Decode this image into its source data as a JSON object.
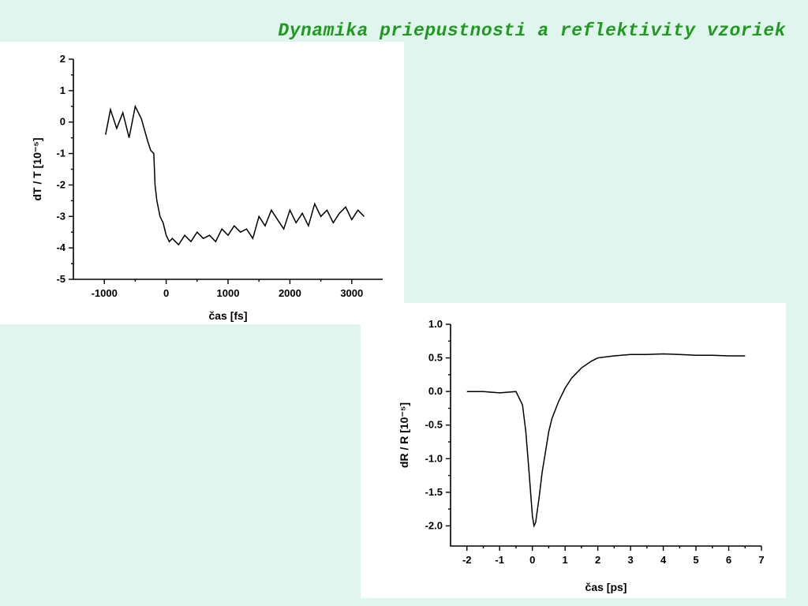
{
  "title": "Dynamika priepustnosti a reflektivity vzoriek",
  "chart_data": [
    {
      "type": "line",
      "xlabel": "čas [fs]",
      "ylabel": "dT / T [10⁻⁵]",
      "xlim": [
        -1500,
        3500
      ],
      "ylim": [
        -5,
        2
      ],
      "xticks": [
        -1000,
        0,
        1000,
        2000,
        3000
      ],
      "yticks": [
        -5,
        -4,
        -3,
        -2,
        -1,
        0,
        1,
        2
      ],
      "grid": false,
      "series": [
        {
          "x": [
            -980,
            -900,
            -800,
            -700,
            -600,
            -500,
            -400,
            -300,
            -250,
            -200,
            -180,
            -150,
            -100,
            -50,
            0,
            50,
            100,
            200,
            300,
            400,
            500,
            600,
            700,
            800,
            900,
            1000,
            1100,
            1200,
            1300,
            1400,
            1500,
            1600,
            1700,
            1800,
            1900,
            2000,
            2100,
            2200,
            2300,
            2400,
            2500,
            2600,
            2700,
            2800,
            2900,
            3000,
            3100,
            3200
          ],
          "y": [
            -0.4,
            0.4,
            -0.2,
            0.3,
            -0.5,
            0.5,
            0.1,
            -0.6,
            -0.9,
            -1.0,
            -2.0,
            -2.5,
            -3.0,
            -3.2,
            -3.6,
            -3.8,
            -3.7,
            -3.9,
            -3.6,
            -3.8,
            -3.5,
            -3.7,
            -3.6,
            -3.8,
            -3.4,
            -3.6,
            -3.3,
            -3.5,
            -3.4,
            -3.7,
            -3.0,
            -3.3,
            -2.8,
            -3.1,
            -3.4,
            -2.8,
            -3.2,
            -2.9,
            -3.3,
            -2.6,
            -3.0,
            -2.8,
            -3.2,
            -2.9,
            -2.7,
            -3.1,
            -2.8,
            -3.0
          ]
        }
      ]
    },
    {
      "type": "line",
      "xlabel": "čas [ps]",
      "ylabel": "dR / R [10⁻⁵]",
      "xlim": [
        -2.5,
        7
      ],
      "ylim": [
        -2.3,
        1.0
      ],
      "xticks": [
        -2,
        -1,
        0,
        1,
        2,
        3,
        4,
        5,
        6,
        7
      ],
      "yticks": [
        1.0,
        0.5,
        0.0,
        -0.5,
        -1.0,
        -1.5,
        -2.0
      ],
      "grid": false,
      "series": [
        {
          "x": [
            -2.0,
            -1.5,
            -1.0,
            -0.5,
            -0.3,
            -0.2,
            -0.1,
            0.0,
            0.05,
            0.1,
            0.2,
            0.3,
            0.4,
            0.5,
            0.6,
            0.8,
            1.0,
            1.2,
            1.5,
            1.8,
            2.0,
            2.5,
            3.0,
            3.5,
            4.0,
            4.5,
            5.0,
            5.5,
            6.0,
            6.5
          ],
          "y": [
            0.0,
            0.0,
            -0.02,
            0.0,
            -0.2,
            -0.6,
            -1.2,
            -1.85,
            -2.0,
            -1.95,
            -1.6,
            -1.2,
            -0.9,
            -0.6,
            -0.4,
            -0.15,
            0.05,
            0.2,
            0.35,
            0.45,
            0.5,
            0.53,
            0.55,
            0.55,
            0.56,
            0.55,
            0.54,
            0.54,
            0.53,
            0.53
          ]
        }
      ]
    }
  ]
}
